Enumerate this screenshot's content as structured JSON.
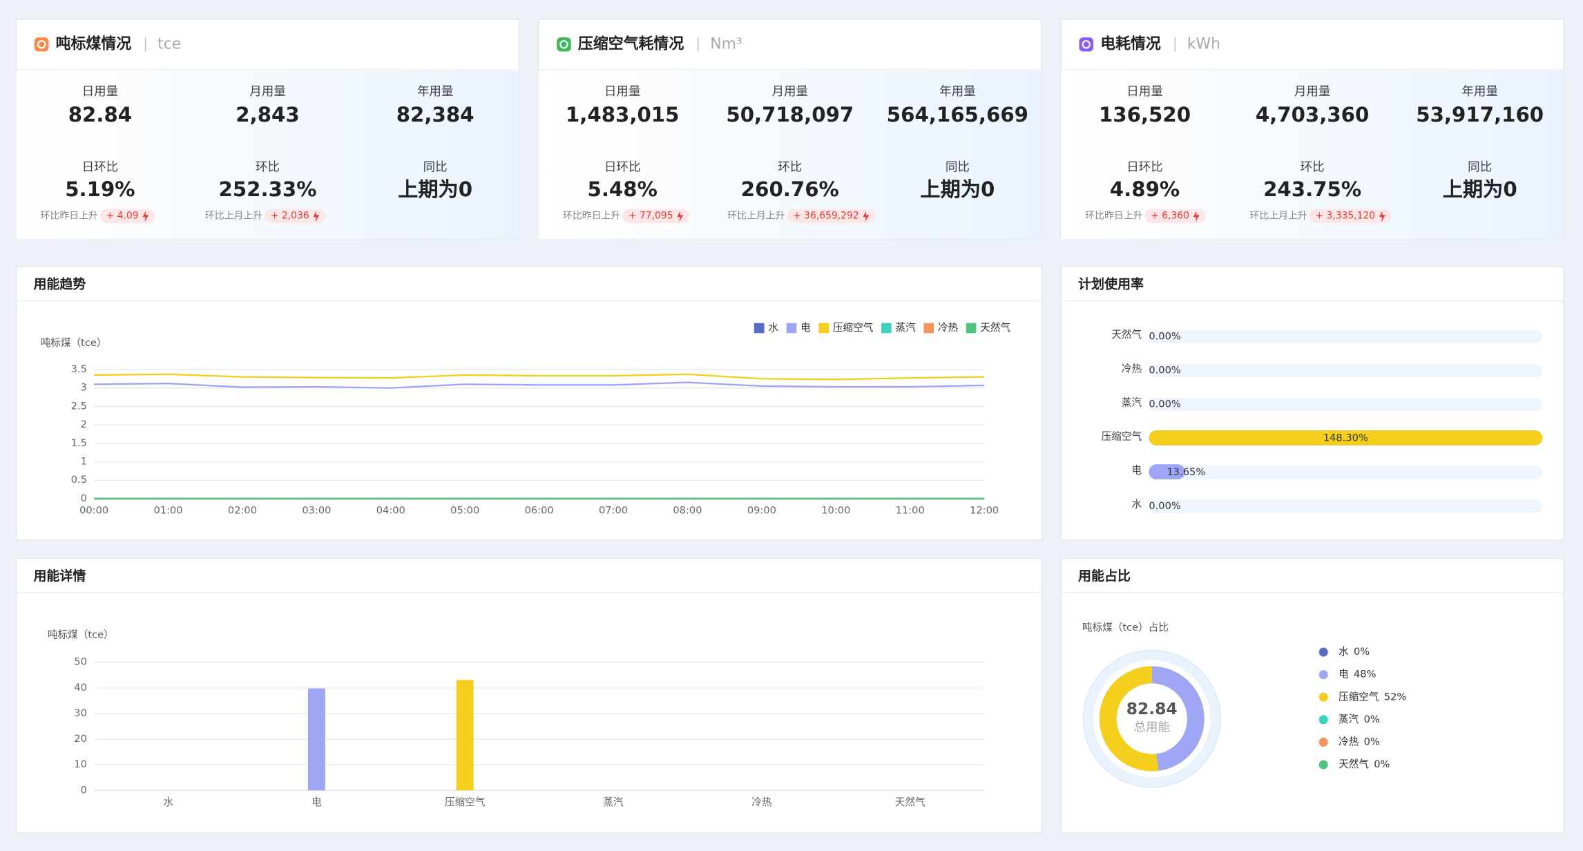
{
  "cards": [
    {
      "title": "吨标煤情况",
      "unit": "tce",
      "icon_color": "#f7894a",
      "metrics": [
        {
          "label": "日用量",
          "value": "82.84"
        },
        {
          "label": "月用量",
          "value": "2,843"
        },
        {
          "label": "年用量",
          "value": "82,384"
        },
        {
          "label": "日环比",
          "value": "5.19%"
        },
        {
          "label": "环比",
          "value": "252.33%"
        },
        {
          "label": "同比",
          "value": "上期为0"
        }
      ],
      "changes": [
        {
          "label": "环比昨日上升",
          "value": "+ 4.09"
        },
        {
          "label": "环比上月上升",
          "value": "+ 2,036"
        }
      ]
    },
    {
      "title": "压缩空气耗情况",
      "unit": "Nm³",
      "icon_color": "#3cb95b",
      "metrics": [
        {
          "label": "日用量",
          "value": "1,483,015"
        },
        {
          "label": "月用量",
          "value": "50,718,097"
        },
        {
          "label": "年用量",
          "value": "564,165,669"
        },
        {
          "label": "日环比",
          "value": "5.48%"
        },
        {
          "label": "环比",
          "value": "260.76%"
        },
        {
          "label": "同比",
          "value": "上期为0"
        }
      ],
      "changes": [
        {
          "label": "环比昨日上升",
          "value": "+ 77,095"
        },
        {
          "label": "环比上月上升",
          "value": "+ 36,659,292"
        }
      ]
    },
    {
      "title": "电耗情况",
      "unit": "kWh",
      "icon_color": "#8a5cf5",
      "metrics": [
        {
          "label": "日用量",
          "value": "136,520"
        },
        {
          "label": "月用量",
          "value": "4,703,360"
        },
        {
          "label": "年用量",
          "value": "53,917,160"
        },
        {
          "label": "日环比",
          "value": "4.89%"
        },
        {
          "label": "环比",
          "value": "243.75%"
        },
        {
          "label": "同比",
          "value": "上期为0"
        }
      ],
      "changes": [
        {
          "label": "环比昨日上升",
          "value": "+ 6,360"
        },
        {
          "label": "环比上月上升",
          "value": "+ 3,335,120"
        }
      ]
    }
  ],
  "chart_data": [
    {
      "type": "line",
      "title": "用能趋势",
      "y_label": "吨标煤（tce）",
      "categories": [
        "00:00",
        "01:00",
        "02:00",
        "03:00",
        "04:00",
        "05:00",
        "06:00",
        "07:00",
        "08:00",
        "09:00",
        "10:00",
        "11:00",
        "12:00"
      ],
      "series": [
        {
          "name": "水",
          "color": "#5470c6",
          "values": [
            0,
            0,
            0,
            0,
            0,
            0,
            0,
            0,
            0,
            0,
            0,
            0,
            0
          ]
        },
        {
          "name": "电",
          "color": "#9fa6f5",
          "values": [
            3.1,
            3.12,
            3.02,
            3.03,
            3.0,
            3.1,
            3.08,
            3.08,
            3.15,
            3.05,
            3.03,
            3.03,
            3.07
          ]
        },
        {
          "name": "压缩空气",
          "color": "#f5cf1e",
          "values": [
            3.35,
            3.37,
            3.3,
            3.28,
            3.27,
            3.35,
            3.33,
            3.33,
            3.37,
            3.25,
            3.23,
            3.27,
            3.3
          ]
        },
        {
          "name": "蒸汽",
          "color": "#3ad3bf",
          "values": [
            0,
            0,
            0,
            0,
            0,
            0,
            0,
            0,
            0,
            0,
            0,
            0,
            0
          ]
        },
        {
          "name": "冷热",
          "color": "#f7945a",
          "values": [
            0,
            0,
            0,
            0,
            0,
            0,
            0,
            0,
            0,
            0,
            0,
            0,
            0
          ]
        },
        {
          "name": "天然气",
          "color": "#4cc47c",
          "values": [
            0,
            0,
            0,
            0,
            0,
            0,
            0,
            0,
            0,
            0,
            0,
            0,
            0
          ]
        }
      ],
      "ylim": [
        0,
        3.5
      ],
      "yticks": [
        0,
        0.5,
        1,
        1.5,
        2,
        2.5,
        3,
        3.5
      ],
      "grid": true,
      "legend": "top-right"
    },
    {
      "type": "hbar",
      "title": "计划使用率",
      "categories": [
        "天然气",
        "冷热",
        "蒸汽",
        "压缩空气",
        "电",
        "水"
      ],
      "values": [
        0,
        0,
        0,
        148.3,
        13.65,
        0
      ],
      "value_labels": [
        "0.00%",
        "0.00%",
        "0.00%",
        "148.30%",
        "13.65%",
        "0.00%"
      ],
      "colors": [
        "#4cc47c",
        "#f7945a",
        "#3ad3bf",
        "#f5cf1e",
        "#9fa6f5",
        "#5470c6"
      ],
      "xlim": [
        0,
        148.3
      ]
    },
    {
      "type": "bar",
      "title": "用能详情",
      "y_label": "吨标煤（tce）",
      "categories": [
        "水",
        "电",
        "压缩空气",
        "蒸汽",
        "冷热",
        "天然气"
      ],
      "values": [
        0,
        39.76,
        43.08,
        0,
        0,
        0
      ],
      "colors": [
        "#5470c6",
        "#9fa6f5",
        "#f5cf1e",
        "#3ad3bf",
        "#f7945a",
        "#4cc47c"
      ],
      "ylim": [
        0,
        50
      ],
      "yticks": [
        0,
        10,
        20,
        30,
        40,
        50
      ],
      "grid": true
    },
    {
      "type": "donut",
      "title": "用能占比",
      "subtitle": "吨标煤（tce）占比",
      "center_value": "82.84",
      "center_label": "总用能",
      "categories": [
        "水",
        "电",
        "压缩空气",
        "蒸汽",
        "冷热",
        "天然气"
      ],
      "values": [
        0,
        48,
        52,
        0,
        0,
        0
      ],
      "value_labels": [
        "0%",
        "48%",
        "52%",
        "0%",
        "0%",
        "0%"
      ],
      "colors": [
        "#5470c6",
        "#9fa6f5",
        "#f5cf1e",
        "#3ad3bf",
        "#f7945a",
        "#4cc47c"
      ]
    }
  ]
}
